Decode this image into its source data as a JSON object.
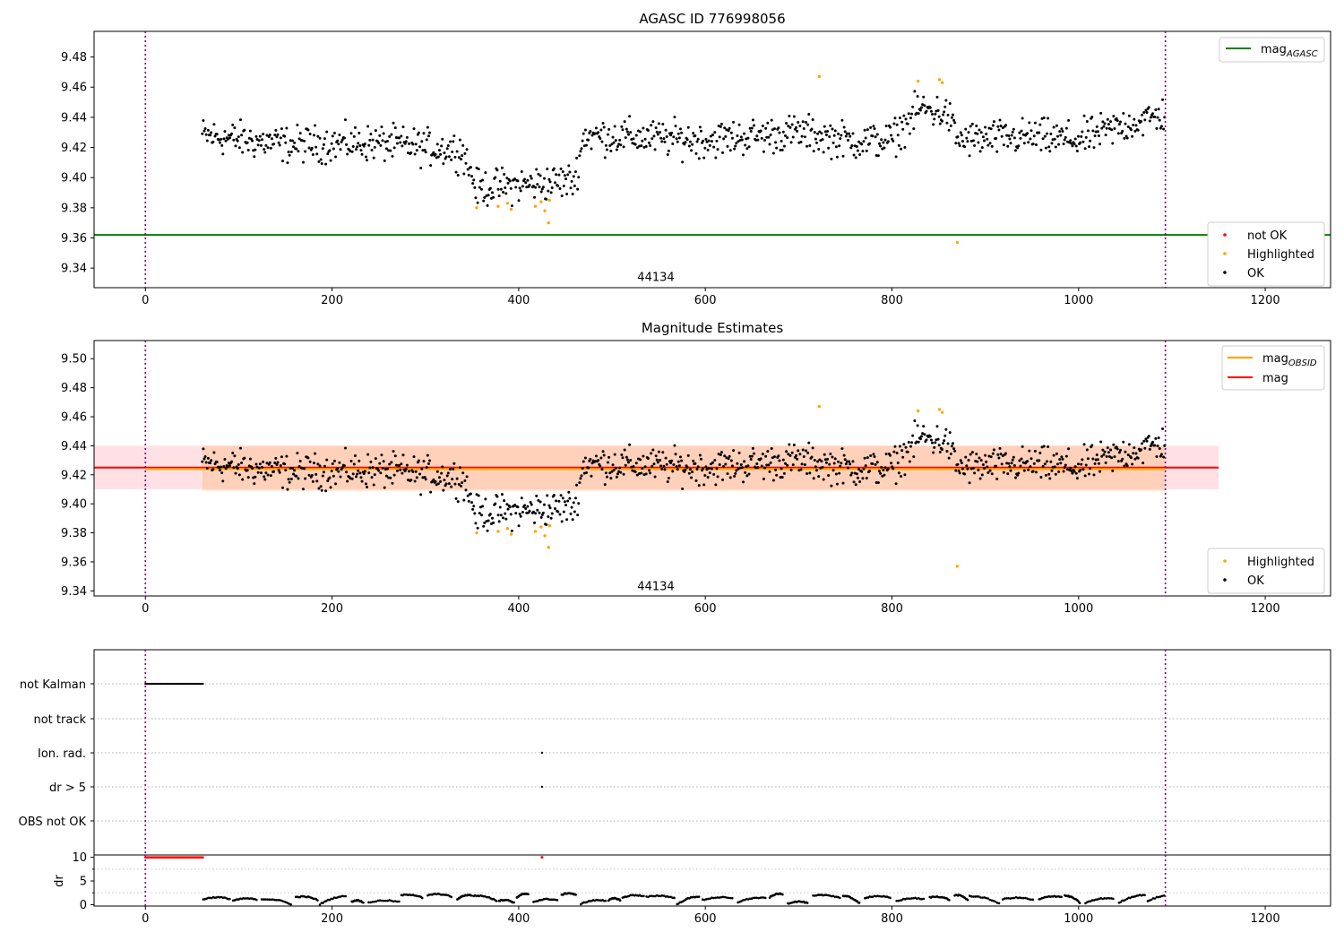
{
  "chart_data": [
    {
      "type": "scatter",
      "title": "AGASC ID 776998056",
      "xlabel": "",
      "ylabel": "",
      "xlim": [
        -55,
        1270
      ],
      "ylim": [
        9.327,
        9.497
      ],
      "xticks": [
        0,
        200,
        400,
        600,
        800,
        1000,
        1200
      ],
      "yticks": [
        9.34,
        9.36,
        9.38,
        9.4,
        9.42,
        9.44,
        9.46,
        9.48
      ],
      "grid": false,
      "vlines": [
        0,
        1093
      ],
      "obsid_label": {
        "text": "44134",
        "x": 547,
        "y": 9.3315
      },
      "hlines": [
        {
          "name": "mag_AGASC",
          "label_base": "mag",
          "label_sub": "AGASC",
          "y": 9.362,
          "color": "#008000"
        }
      ],
      "legend_upper": {
        "position": "top-right",
        "entries": [
          "mag_AGASC"
        ]
      },
      "legend_lower": {
        "position": "bottom-right",
        "entries": [
          {
            "label": "not OK",
            "color": "#ff0000"
          },
          {
            "label": "Highlighted",
            "color": "#ffa500"
          },
          {
            "label": "OK",
            "color": "#000000"
          }
        ]
      },
      "series": [
        {
          "name": "not OK",
          "color": "#ff0000",
          "points": []
        },
        {
          "name": "Highlighted",
          "color": "#ffa500",
          "points": [
            [
              355,
              9.38
            ],
            [
              378,
              9.381
            ],
            [
              388,
              9.383
            ],
            [
              392,
              9.379
            ],
            [
              418,
              9.381
            ],
            [
              424,
              9.384
            ],
            [
              428,
              9.378
            ],
            [
              432,
              9.37
            ],
            [
              433,
              9.385
            ],
            [
              722,
              9.467
            ],
            [
              828,
              9.464
            ],
            [
              851,
              9.465
            ],
            [
              854,
              9.463
            ],
            [
              870,
              9.357
            ]
          ]
        },
        {
          "name": "OK",
          "color": "#000000",
          "generated": true,
          "x_range": [
            61,
            1093
          ],
          "trend": [
            [
              61,
              9.428
            ],
            [
              150,
              9.422
            ],
            [
              250,
              9.423
            ],
            [
              340,
              9.418
            ],
            [
              355,
              9.393
            ],
            [
              420,
              9.396
            ],
            [
              460,
              9.398
            ],
            [
              470,
              9.428
            ],
            [
              600,
              9.425
            ],
            [
              700,
              9.43
            ],
            [
              760,
              9.424
            ],
            [
              800,
              9.425
            ],
            [
              830,
              9.446
            ],
            [
              860,
              9.442
            ],
            [
              870,
              9.425
            ],
            [
              950,
              9.427
            ],
            [
              1000,
              9.425
            ],
            [
              1050,
              9.435
            ],
            [
              1093,
              9.442
            ]
          ],
          "scatter": 0.011
        }
      ]
    },
    {
      "type": "scatter",
      "title": "Magnitude Estimates",
      "xlabel": "",
      "ylabel": "",
      "xlim": [
        -55,
        1270
      ],
      "ylim": [
        9.3365,
        9.5125
      ],
      "xticks": [
        0,
        200,
        400,
        600,
        800,
        1000,
        1200
      ],
      "yticks": [
        9.34,
        9.36,
        9.38,
        9.4,
        9.42,
        9.44,
        9.46,
        9.48,
        9.5
      ],
      "grid": false,
      "vlines": [
        0,
        1093
      ],
      "obsid_label": {
        "text": "44134",
        "x": 547,
        "y": 9.3405
      },
      "bands": [
        {
          "name": "mag band",
          "y0": 9.41,
          "y1": 9.44,
          "x0": -55,
          "x1": 1150,
          "color": "#ff9aa8"
        },
        {
          "name": "mag_OBSID band",
          "y0": 9.409,
          "y1": 9.44,
          "x0": 61,
          "x1": 1093,
          "color": "#ffb26b"
        }
      ],
      "hlines": [
        {
          "name": "mag",
          "label_base": "mag",
          "label_sub": "",
          "y": 9.425,
          "x0": -55,
          "x1": 1150,
          "color": "#ff0000"
        },
        {
          "name": "mag_OBSID",
          "label_base": "mag",
          "label_sub": "OBSID",
          "y": 9.424,
          "x0": 0,
          "x1": 1093,
          "color": "#ffa500"
        }
      ],
      "legend_upper": {
        "position": "top-right",
        "entries": [
          "mag_OBSID",
          "mag"
        ]
      },
      "legend_lower": {
        "position": "bottom-right",
        "entries": [
          {
            "label": "Highlighted",
            "color": "#ffa500"
          },
          {
            "label": "OK",
            "color": "#000000"
          }
        ]
      },
      "series": [
        {
          "name": "Highlighted",
          "color": "#ffa500",
          "points": [
            [
              355,
              9.38
            ],
            [
              378,
              9.381
            ],
            [
              388,
              9.383
            ],
            [
              392,
              9.379
            ],
            [
              418,
              9.381
            ],
            [
              424,
              9.384
            ],
            [
              428,
              9.378
            ],
            [
              432,
              9.37
            ],
            [
              433,
              9.385
            ],
            [
              722,
              9.467
            ],
            [
              828,
              9.464
            ],
            [
              851,
              9.465
            ],
            [
              854,
              9.463
            ],
            [
              870,
              9.357
            ]
          ]
        },
        {
          "name": "OK",
          "color": "#000000",
          "generated": true,
          "same_as_panel": 0
        }
      ]
    },
    {
      "type": "scatter",
      "title": "",
      "xlabel": "",
      "ylabel": "",
      "xlim": [
        -55,
        1270
      ],
      "xticks": [
        0,
        200,
        400,
        600,
        800,
        1000,
        1200
      ],
      "vlines": [
        0,
        1093
      ],
      "flag_rows": [
        {
          "label": "not Kalman",
          "segments": [
            [
              0,
              62
            ]
          ],
          "points": []
        },
        {
          "label": "not track",
          "segments": [],
          "points": []
        },
        {
          "label": "Ion. rad.",
          "segments": [],
          "points": [
            425
          ]
        },
        {
          "label": "dr > 5",
          "segments": [],
          "points": [
            425
          ]
        },
        {
          "label": "OBS not OK",
          "segments": [],
          "points": []
        }
      ]
    },
    {
      "type": "scatter",
      "title": "",
      "xlabel": "",
      "ylabel": "dr",
      "xlim": [
        -55,
        1270
      ],
      "ylim": [
        -0.3,
        10.5
      ],
      "xticks": [
        0,
        200,
        400,
        600,
        800,
        1000,
        1200
      ],
      "yticks": [
        0,
        5,
        10
      ],
      "vlines": [
        0,
        1093
      ],
      "clipped": {
        "color": "#ff0000",
        "value": 10,
        "segments": [
          [
            0,
            62
          ]
        ],
        "points": [
          425
        ]
      },
      "series": [
        {
          "name": "dr",
          "color": "#000000",
          "generated": true,
          "x_range": [
            62,
            1093
          ],
          "range": [
            0,
            2.6
          ]
        }
      ]
    }
  ]
}
